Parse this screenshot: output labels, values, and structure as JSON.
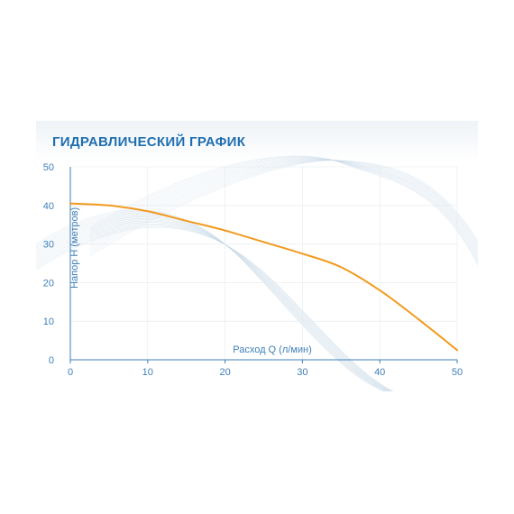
{
  "chart_data": {
    "type": "line",
    "title": "ГИДРАВЛИЧЕСКИЙ ГРАФИК",
    "xlabel": "Расход Q (л/мин)",
    "ylabel": "Напор H (метров)",
    "xlim": [
      0,
      50
    ],
    "ylim": [
      0,
      50
    ],
    "x_ticks": [
      "0",
      "10",
      "20",
      "30",
      "40",
      "50"
    ],
    "y_ticks": [
      "0",
      "10",
      "20",
      "30",
      "40",
      "50"
    ],
    "grid": true,
    "series": [
      {
        "x": [
          0,
          5,
          10,
          15,
          20,
          25,
          30,
          35,
          40,
          45,
          50
        ],
        "y": [
          40.5,
          40,
          38.5,
          36,
          33.5,
          30.5,
          27.5,
          24,
          18,
          10.5,
          2.5
        ]
      }
    ],
    "colors": {
      "title": "#1f6fb0",
      "tick_labels": "#3f7fb6",
      "axis": "#3f7fb6",
      "grid": "#e3e9ee",
      "curve": "#f29a1e",
      "decor": "#c6d8e6",
      "band": "#eef3f7"
    }
  }
}
